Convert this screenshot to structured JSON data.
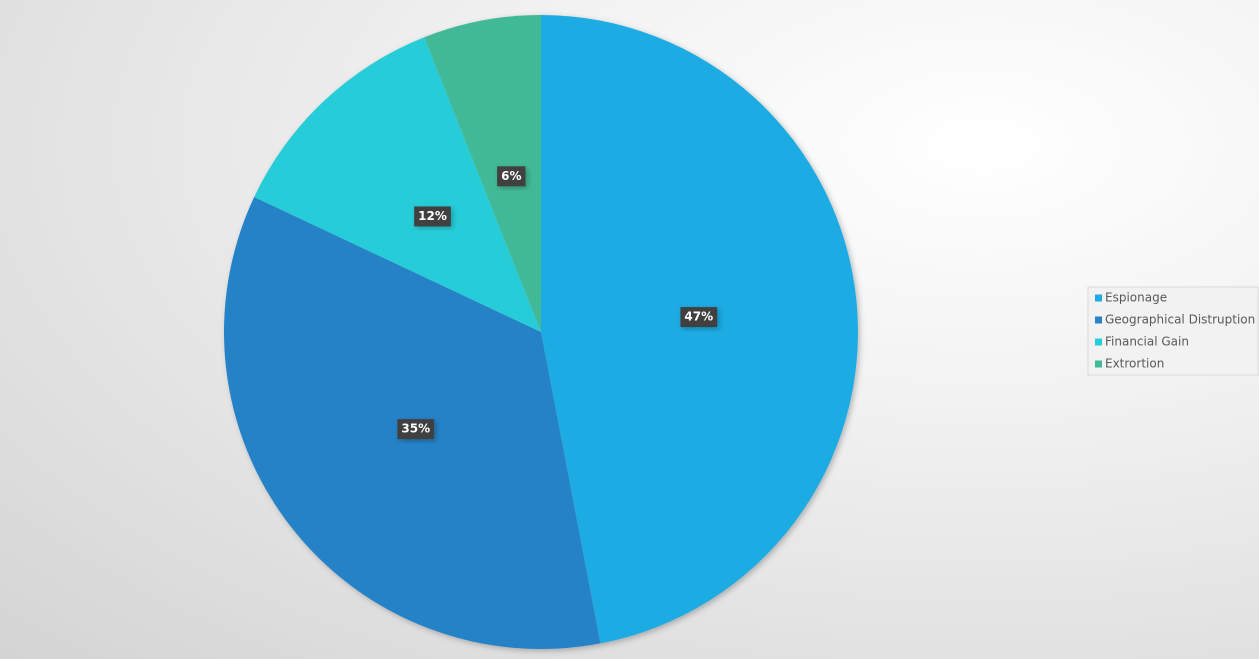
{
  "chart_data": {
    "type": "pie",
    "categories": [
      "Espionage",
      "Geographical Distruption",
      "Financial Gain",
      "Extrortion"
    ],
    "values": [
      47,
      35,
      12,
      6
    ],
    "value_labels": [
      "47%",
      "35%",
      "12%",
      "6%"
    ],
    "colors": [
      "#1eabe3",
      "#2782c7",
      "#27cdd8",
      "#43b996"
    ],
    "legend": "right"
  }
}
